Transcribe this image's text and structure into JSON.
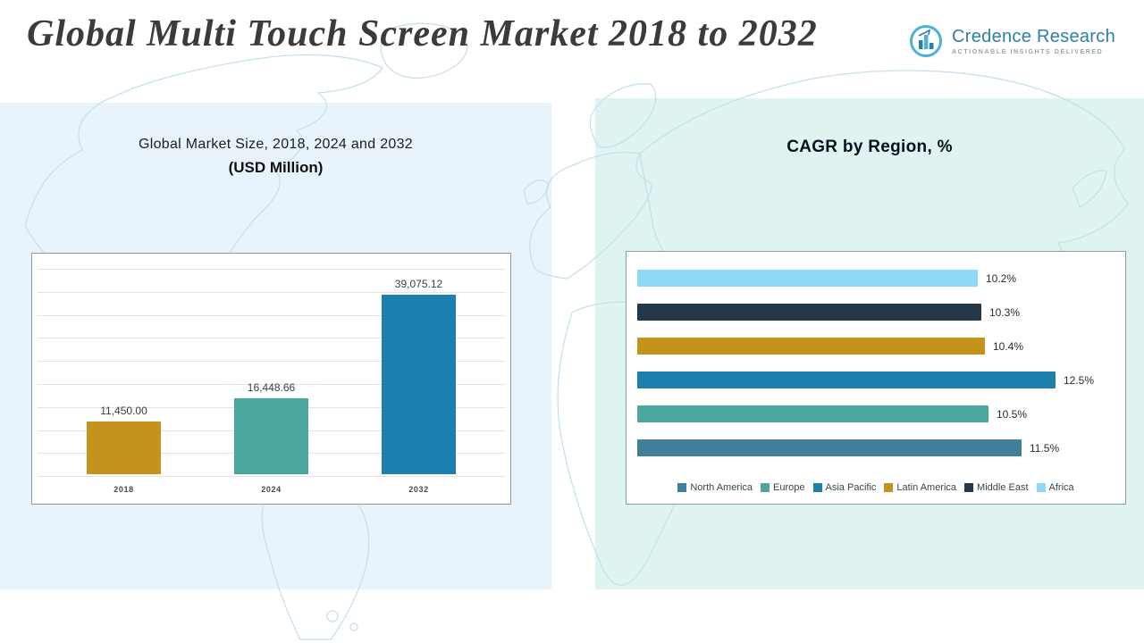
{
  "page": {
    "title": "Global Multi Touch Screen Market 2018 to 2032"
  },
  "logo": {
    "name": "Credence Research",
    "tagline": "Actionable Insights Delivered",
    "icon_name": "bar-chart-growth-icon"
  },
  "left_chart": {
    "title_line1": "Global Market Size, 2018, 2024 and 2032",
    "title_line2": "(USD Million)"
  },
  "right_chart": {
    "title": "CAGR by Region, %"
  },
  "palette": {
    "left_panel_bg": "#e9f3fb",
    "right_panel_bg": "#dff4f0",
    "title_color": "#3b3b3a",
    "brand_blue": "#2e7fa9",
    "map_line": "#c3deec"
  },
  "chart_data": [
    {
      "type": "bar",
      "orientation": "vertical",
      "title": "Global Market Size, 2018, 2024 and 2032 (USD Million)",
      "categories": [
        "2018",
        "2024",
        "2032"
      ],
      "values": [
        11450.0,
        16448.66,
        39075.12
      ],
      "value_labels": [
        "11,450.00",
        "16,448.66",
        "39,075.12"
      ],
      "colors": [
        "#c3931b",
        "#4ba69e",
        "#1d7fad"
      ],
      "xlabel": "",
      "ylabel": "",
      "ylim": [
        0,
        40000
      ],
      "grid": true,
      "legend_position": "none"
    },
    {
      "type": "bar",
      "orientation": "horizontal",
      "title": "CAGR by Region, %",
      "categories": [
        "Africa",
        "Middle East",
        "Latin America",
        "Asia Pacific",
        "Europe",
        "North America"
      ],
      "values": [
        10.2,
        10.3,
        10.4,
        12.5,
        10.5,
        11.5
      ],
      "value_labels": [
        "10.2%",
        "10.3%",
        "10.4%",
        "12.5%",
        "10.5%",
        "11.5%"
      ],
      "colors": [
        "#8fd9f8",
        "#243848",
        "#c3931b",
        "#1d7fad",
        "#4ba69e",
        "#417f9b"
      ],
      "xlabel": "",
      "ylabel": "",
      "xlim": [
        0,
        13.5
      ],
      "grid": false,
      "legend_position": "bottom",
      "legend": [
        "North America",
        "Europe",
        "Asia Pacific",
        "Latin America",
        "Middle East",
        "Africa"
      ],
      "legend_colors": [
        "#417f9b",
        "#4ba69e",
        "#1d7fad",
        "#c3931b",
        "#243848",
        "#8fd9f8"
      ]
    }
  ]
}
